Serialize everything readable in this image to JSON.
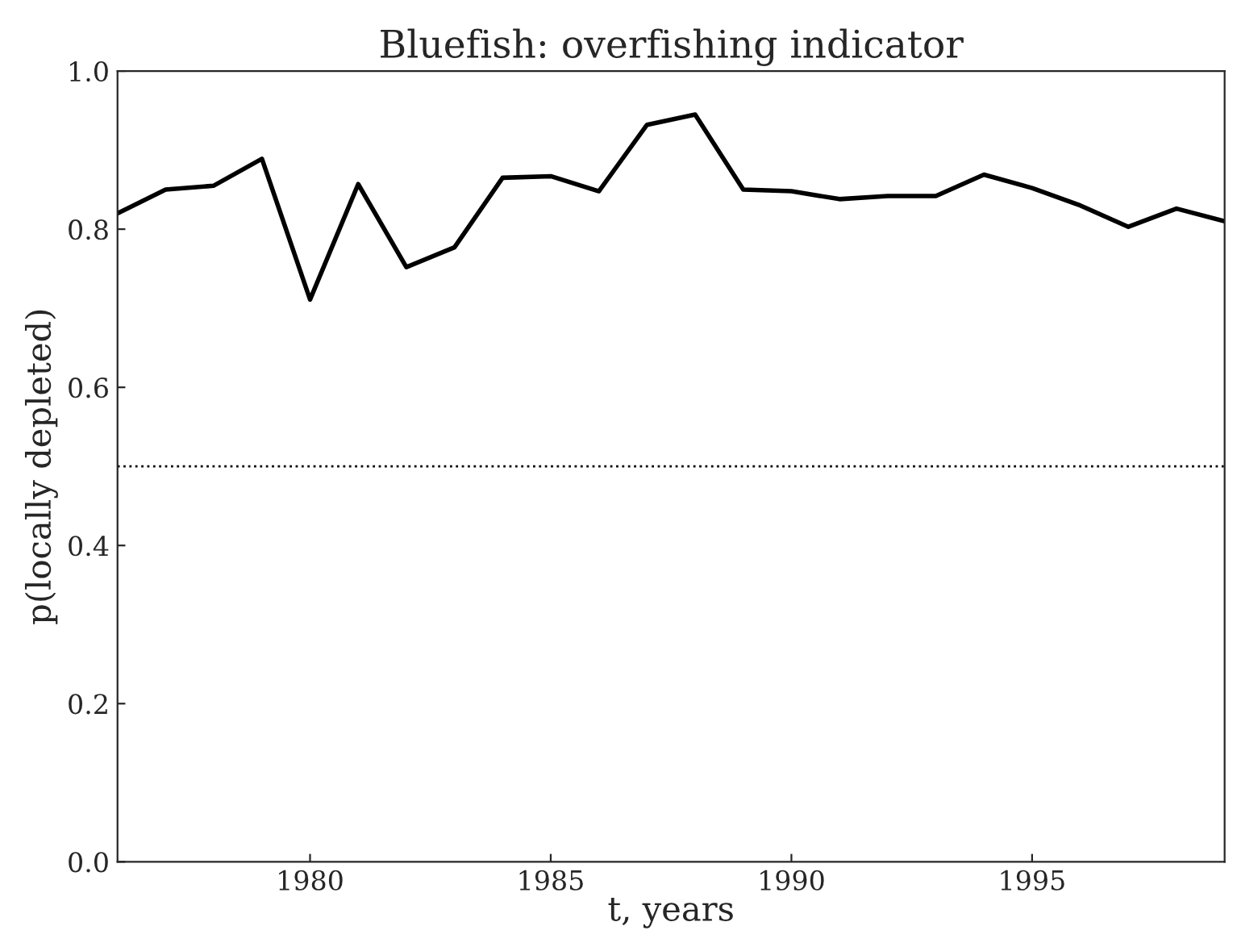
{
  "chart_data": {
    "type": "line",
    "title": "Bluefish: overfishing indicator",
    "xlabel": "t, years",
    "ylabel": "p(locally depleted)",
    "x": [
      1976,
      1977,
      1978,
      1979,
      1980,
      1981,
      1982,
      1983,
      1984,
      1985,
      1986,
      1987,
      1988,
      1989,
      1990,
      1991,
      1992,
      1993,
      1994,
      1995,
      1996,
      1997,
      1998,
      1999
    ],
    "series": [
      {
        "color": "#000000",
        "values": [
          0.82,
          0.85,
          0.855,
          0.889,
          0.711,
          0.857,
          0.752,
          0.777,
          0.865,
          0.867,
          0.848,
          0.932,
          0.945,
          0.85,
          0.848,
          0.838,
          0.842,
          0.842,
          0.869,
          0.852,
          0.83,
          0.803,
          0.826,
          0.81
        ]
      }
    ],
    "xlim": [
      1976,
      1999
    ],
    "ylim": [
      0,
      1.0
    ],
    "xticks": [
      1980,
      1985,
      1990,
      1995
    ],
    "yticks": [
      {
        "value": 0,
        "label": "0.0"
      },
      {
        "value": 0.2,
        "label": "0.2"
      },
      {
        "value": 0.4,
        "label": "0.4"
      },
      {
        "value": 0.6,
        "label": "0.6"
      },
      {
        "value": 0.8,
        "label": "0.8"
      },
      {
        "value": 1.0,
        "label": "1.0"
      }
    ],
    "ref_lines": [
      {
        "axis": "y",
        "value": 0.5,
        "color": "#000000",
        "line_style": "dotted"
      }
    ],
    "grid": false,
    "legend": false
  }
}
